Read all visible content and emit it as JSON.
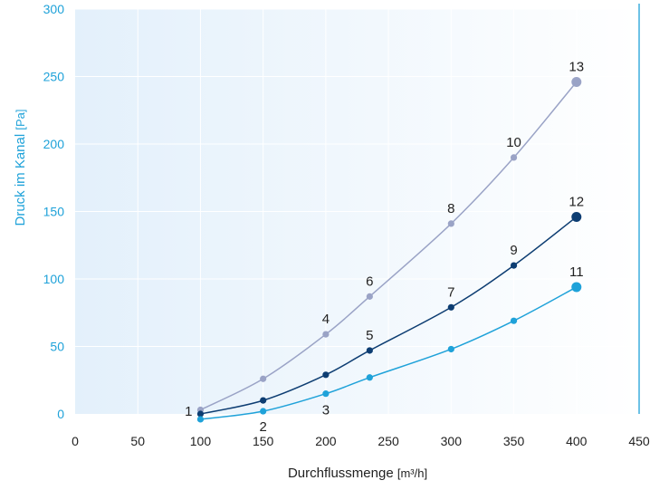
{
  "colors": {
    "axis_text": "#1fa2d9",
    "series_upper": "#9aa3c6",
    "series_middle": "#0d3d72",
    "series_lower": "#1fa2d9",
    "plot_bg_left": "#e3f0fb",
    "plot_bg_right": "#ffffff",
    "grid": "#ffffff",
    "right_rule": "#1fa2d9",
    "label_text": "#222222"
  },
  "chart_data": {
    "type": "line",
    "title": "",
    "xlabel_main": "Durchflussmenge",
    "xlabel_unit": "[m³/h]",
    "ylabel_main": "Druck im Kanal",
    "ylabel_unit": "[Pa]",
    "xlim": [
      0,
      450
    ],
    "ylim": [
      0,
      300
    ],
    "x_ticks": [
      "0",
      "50",
      "100",
      "150",
      "200",
      "250",
      "300",
      "350",
      "400",
      "450"
    ],
    "y_ticks": [
      "0",
      "50",
      "100",
      "150",
      "200",
      "250",
      "300"
    ],
    "grid": true,
    "legend": "none",
    "series": [
      {
        "color_key": "series_upper",
        "points": [
          {
            "x": 100,
            "y": 3,
            "label": ""
          },
          {
            "x": 150,
            "y": 26,
            "label": ""
          },
          {
            "x": 200,
            "y": 59,
            "label": "4"
          },
          {
            "x": 235,
            "y": 87,
            "label": "6"
          },
          {
            "x": 300,
            "y": 141,
            "label": "8"
          },
          {
            "x": 350,
            "y": 190,
            "label": "10"
          },
          {
            "x": 400,
            "y": 246,
            "label": "13"
          }
        ]
      },
      {
        "color_key": "series_middle",
        "points": [
          {
            "x": 100,
            "y": 0,
            "label": "1"
          },
          {
            "x": 150,
            "y": 10,
            "label": ""
          },
          {
            "x": 200,
            "y": 29,
            "label": ""
          },
          {
            "x": 235,
            "y": 47,
            "label": "5"
          },
          {
            "x": 300,
            "y": 79,
            "label": "7"
          },
          {
            "x": 350,
            "y": 110,
            "label": "9"
          },
          {
            "x": 400,
            "y": 146,
            "label": "12"
          }
        ]
      },
      {
        "color_key": "series_lower",
        "points": [
          {
            "x": 100,
            "y": -4,
            "label": ""
          },
          {
            "x": 150,
            "y": 2,
            "label": "2"
          },
          {
            "x": 200,
            "y": 15,
            "label": "3"
          },
          {
            "x": 235,
            "y": 27,
            "label": ""
          },
          {
            "x": 300,
            "y": 48,
            "label": ""
          },
          {
            "x": 350,
            "y": 69,
            "label": ""
          },
          {
            "x": 400,
            "y": 94,
            "label": "11"
          }
        ]
      }
    ]
  }
}
